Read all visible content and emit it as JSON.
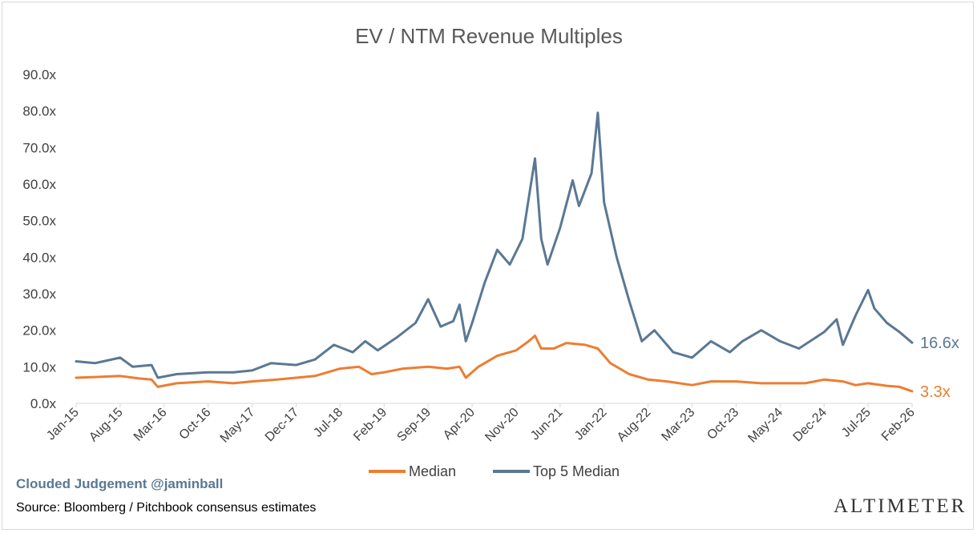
{
  "chart_data": {
    "type": "line",
    "title": "EV / NTM Revenue Multiples",
    "x_tick_labels": [
      "Jan-15",
      "Aug-15",
      "Mar-16",
      "Oct-16",
      "May-17",
      "Dec-17",
      "Jul-18",
      "Feb-19",
      "Sep-19",
      "Apr-20",
      "Nov-20",
      "Jun-21",
      "Jan-22",
      "Aug-22",
      "Mar-23",
      "Oct-23",
      "May-24",
      "Dec-24",
      "Jul-25",
      "Feb-26"
    ],
    "y_tick_labels": [
      "0.0x",
      "10.0x",
      "20.0x",
      "30.0x",
      "40.0x",
      "50.0x",
      "60.0x",
      "70.0x",
      "80.0x",
      "90.0x"
    ],
    "ylim": [
      0,
      90
    ],
    "x_range": [
      "2015-01",
      "2026-02"
    ],
    "grid": false,
    "legend_position": "bottom",
    "series": [
      {
        "name": "Median",
        "color": "#ed7d31",
        "end_label": "3.3x",
        "points": [
          [
            "2015-01",
            7.0
          ],
          [
            "2015-04",
            7.2
          ],
          [
            "2015-08",
            7.5
          ],
          [
            "2015-11",
            6.8
          ],
          [
            "2016-01",
            6.5
          ],
          [
            "2016-02",
            4.5
          ],
          [
            "2016-05",
            5.5
          ],
          [
            "2016-10",
            6.0
          ],
          [
            "2017-02",
            5.5
          ],
          [
            "2017-05",
            6.0
          ],
          [
            "2017-09",
            6.5
          ],
          [
            "2017-12",
            7.0
          ],
          [
            "2018-03",
            7.5
          ],
          [
            "2018-05",
            8.5
          ],
          [
            "2018-07",
            9.5
          ],
          [
            "2018-10",
            10.0
          ],
          [
            "2018-12",
            8.0
          ],
          [
            "2019-02",
            8.5
          ],
          [
            "2019-05",
            9.5
          ],
          [
            "2019-09",
            10.0
          ],
          [
            "2019-12",
            9.5
          ],
          [
            "2020-02",
            10.0
          ],
          [
            "2020-03",
            7.0
          ],
          [
            "2020-05",
            10.0
          ],
          [
            "2020-08",
            13.0
          ],
          [
            "2020-11",
            14.5
          ],
          [
            "2021-01",
            17.0
          ],
          [
            "2021-02",
            18.5
          ],
          [
            "2021-03",
            15.0
          ],
          [
            "2021-05",
            15.0
          ],
          [
            "2021-07",
            16.5
          ],
          [
            "2021-10",
            16.0
          ],
          [
            "2021-12",
            15.0
          ],
          [
            "2022-02",
            11.0
          ],
          [
            "2022-05",
            8.0
          ],
          [
            "2022-08",
            6.5
          ],
          [
            "2022-11",
            6.0
          ],
          [
            "2023-03",
            5.0
          ],
          [
            "2023-06",
            6.0
          ],
          [
            "2023-10",
            6.0
          ],
          [
            "2024-02",
            5.5
          ],
          [
            "2024-05",
            5.5
          ],
          [
            "2024-09",
            5.5
          ],
          [
            "2024-12",
            6.5
          ],
          [
            "2025-03",
            6.0
          ],
          [
            "2025-05",
            5.0
          ],
          [
            "2025-07",
            5.5
          ],
          [
            "2025-10",
            4.8
          ],
          [
            "2025-12",
            4.5
          ],
          [
            "2026-02",
            3.3
          ]
        ]
      },
      {
        "name": "Top 5 Median",
        "color": "#5a7894",
        "end_label": "16.6x",
        "points": [
          [
            "2015-01",
            11.5
          ],
          [
            "2015-04",
            11.0
          ],
          [
            "2015-08",
            12.5
          ],
          [
            "2015-10",
            10.0
          ],
          [
            "2016-01",
            10.5
          ],
          [
            "2016-02",
            7.0
          ],
          [
            "2016-05",
            8.0
          ],
          [
            "2016-10",
            8.5
          ],
          [
            "2017-02",
            8.5
          ],
          [
            "2017-05",
            9.0
          ],
          [
            "2017-08",
            11.0
          ],
          [
            "2017-12",
            10.5
          ],
          [
            "2018-03",
            12.0
          ],
          [
            "2018-06",
            16.0
          ],
          [
            "2018-09",
            14.0
          ],
          [
            "2018-11",
            17.0
          ],
          [
            "2019-01",
            14.5
          ],
          [
            "2019-04",
            18.0
          ],
          [
            "2019-07",
            22.0
          ],
          [
            "2019-09",
            28.5
          ],
          [
            "2019-11",
            21.0
          ],
          [
            "2020-01",
            22.5
          ],
          [
            "2020-02",
            27.0
          ],
          [
            "2020-03",
            17.0
          ],
          [
            "2020-04",
            22.0
          ],
          [
            "2020-06",
            33.0
          ],
          [
            "2020-08",
            42.0
          ],
          [
            "2020-10",
            38.0
          ],
          [
            "2020-12",
            45.0
          ],
          [
            "2021-01",
            56.0
          ],
          [
            "2021-02",
            67.0
          ],
          [
            "2021-03",
            45.0
          ],
          [
            "2021-04",
            38.0
          ],
          [
            "2021-06",
            48.0
          ],
          [
            "2021-08",
            61.0
          ],
          [
            "2021-09",
            54.0
          ],
          [
            "2021-11",
            63.0
          ],
          [
            "2021-12",
            79.5
          ],
          [
            "2022-01",
            55.0
          ],
          [
            "2022-03",
            40.0
          ],
          [
            "2022-05",
            28.0
          ],
          [
            "2022-07",
            17.0
          ],
          [
            "2022-09",
            20.0
          ],
          [
            "2022-12",
            14.0
          ],
          [
            "2023-03",
            12.5
          ],
          [
            "2023-06",
            17.0
          ],
          [
            "2023-09",
            14.0
          ],
          [
            "2023-11",
            17.0
          ],
          [
            "2024-02",
            20.0
          ],
          [
            "2024-05",
            17.0
          ],
          [
            "2024-08",
            15.0
          ],
          [
            "2024-12",
            19.5
          ],
          [
            "2025-02",
            23.0
          ],
          [
            "2025-03",
            16.0
          ],
          [
            "2025-05",
            24.0
          ],
          [
            "2025-07",
            31.0
          ],
          [
            "2025-08",
            26.0
          ],
          [
            "2025-10",
            22.0
          ],
          [
            "2025-12",
            19.5
          ],
          [
            "2026-02",
            16.6
          ]
        ]
      }
    ]
  },
  "footer": {
    "brand": "Clouded Judgement @jaminball",
    "source": "Source: Bloomberg / Pitchbook consensus estimates",
    "logo": "ALTIMETER"
  }
}
